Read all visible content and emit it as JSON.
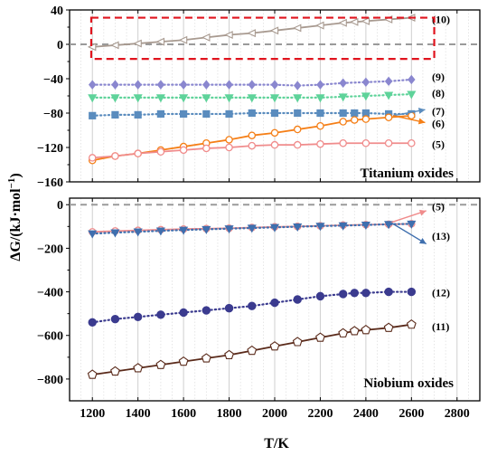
{
  "figure": {
    "xlabel": "T/K",
    "ylabel": "ΔG/(kJ·mol",
    "ylabel_sup": "−1",
    "ylabel_close": ")"
  },
  "chart_data": [
    {
      "type": "line",
      "annotation": "Titanium oxides",
      "xlim": [
        1100,
        2900
      ],
      "ylim": [
        -160,
        40
      ],
      "xticks": [
        "1200",
        "1400",
        "1600",
        "1800",
        "2000",
        "2200",
        "2400",
        "2600",
        "2800"
      ],
      "yticks": [
        "40",
        "0",
        "−40",
        "−80",
        "−120",
        "−160"
      ],
      "reference_line": 0,
      "highlight_box": {
        "x": [
          1195,
          2700
        ],
        "y": [
          -17,
          31
        ],
        "color": "#e0141e"
      },
      "series": [
        {
          "name": "(10)",
          "color": "#a89a90",
          "marker": "lefttri",
          "style": "solid",
          "x": [
            1200,
            1300,
            1400,
            1500,
            1600,
            1700,
            1800,
            1900,
            2000,
            2100,
            2200,
            2300,
            2350,
            2400,
            2500,
            2600
          ],
          "y": [
            -3,
            -1,
            1,
            3,
            5,
            8,
            11,
            13,
            16,
            19,
            22,
            25,
            26,
            27,
            29,
            31
          ]
        },
        {
          "name": "(9)",
          "color": "#8a87cf",
          "marker": "diamond",
          "style": "dotted",
          "x": [
            1200,
            1300,
            1400,
            1500,
            1600,
            1700,
            1800,
            1900,
            2000,
            2100,
            2200,
            2300,
            2400,
            2500,
            2600
          ],
          "y": [
            -47,
            -47,
            -47,
            -47,
            -47,
            -47,
            -47,
            -47,
            -47,
            -48,
            -47,
            -45,
            -44,
            -43,
            -41
          ]
        },
        {
          "name": "(8)",
          "color": "#5fd39a",
          "marker": "downtri",
          "style": "dotted",
          "x": [
            1200,
            1300,
            1400,
            1500,
            1600,
            1700,
            1800,
            1900,
            2000,
            2100,
            2200,
            2300,
            2400,
            2500,
            2600
          ],
          "y": [
            -62,
            -62,
            -62,
            -62,
            -62,
            -62,
            -62,
            -62,
            -62,
            -62,
            -62,
            -61,
            -60,
            -59,
            -58
          ]
        },
        {
          "name": "(7)",
          "color": "#5a8cbe",
          "marker": "square",
          "style": "dotted",
          "x": [
            1200,
            1300,
            1400,
            1500,
            1600,
            1700,
            1800,
            1900,
            2000,
            2100,
            2200,
            2300,
            2350,
            2400,
            2500,
            2600
          ],
          "y": [
            -83,
            -82,
            -82,
            -81,
            -81,
            -81,
            -81,
            -80,
            -80,
            -80,
            -80,
            -80,
            -80,
            -80,
            -81,
            -81
          ]
        },
        {
          "name": "(6)",
          "color": "#f57f17",
          "marker": "circle-open",
          "style": "solid",
          "x": [
            1200,
            1300,
            1400,
            1500,
            1600,
            1700,
            1800,
            1900,
            2000,
            2100,
            2200,
            2300,
            2350,
            2400,
            2500,
            2600
          ],
          "y": [
            -135,
            -130,
            -127,
            -123,
            -119,
            -115,
            -111,
            -106,
            -103,
            -99,
            -95,
            -90,
            -88,
            -87,
            -85,
            -83
          ]
        },
        {
          "name": "(5)",
          "color": "#f08c8c",
          "marker": "circle-open",
          "style": "solid",
          "x": [
            1200,
            1300,
            1400,
            1500,
            1600,
            1700,
            1800,
            1900,
            2000,
            2100,
            2200,
            2300,
            2400,
            2500,
            2600
          ],
          "y": [
            -132,
            -130,
            -127,
            -125,
            -123,
            -121,
            -120,
            -118,
            -117,
            -117,
            -116,
            -115,
            -115,
            -115,
            -115
          ]
        }
      ],
      "labels": [
        {
          "text": "(10)",
          "y": 30
        },
        {
          "text": "(9)",
          "y": -37
        },
        {
          "text": "(8)",
          "y": -56
        },
        {
          "text": "(7)",
          "y": -77
        },
        {
          "text": "(6)",
          "y": -91
        },
        {
          "text": "(5)",
          "y": -115
        }
      ]
    },
    {
      "type": "line",
      "annotation": "Niobium oxides",
      "xlim": [
        1100,
        2900
      ],
      "ylim": [
        -900,
        30
      ],
      "xticks": [
        "1200",
        "1400",
        "1600",
        "1800",
        "2000",
        "2200",
        "2400",
        "2600",
        "2800"
      ],
      "yticks": [
        "0",
        "−200",
        "−400",
        "−600",
        "−800"
      ],
      "reference_line": 0,
      "series": [
        {
          "name": "(5)",
          "color": "#f08c8c",
          "marker": "circle-open",
          "style": "solid",
          "x": [
            1200,
            1300,
            1400,
            1500,
            1600,
            1700,
            1800,
            1900,
            2000,
            2100,
            2200,
            2300,
            2400,
            2500,
            2600
          ],
          "y": [
            -125,
            -121,
            -118,
            -115,
            -112,
            -110,
            -108,
            -105,
            -102,
            -100,
            -97,
            -94,
            -92,
            -90,
            -88
          ]
        },
        {
          "name": "(13)",
          "color": "#3f6fae",
          "marker": "downtri",
          "style": "dotted",
          "x": [
            1200,
            1300,
            1400,
            1500,
            1600,
            1700,
            1800,
            1900,
            2000,
            2100,
            2200,
            2300,
            2400,
            2500,
            2600
          ],
          "y": [
            -133,
            -128,
            -124,
            -120,
            -116,
            -113,
            -110,
            -107,
            -104,
            -101,
            -98,
            -96,
            -93,
            -90,
            -88
          ]
        },
        {
          "name": "(12)",
          "color": "#3b3b8f",
          "marker": "circle-filled",
          "style": "dotted",
          "x": [
            1200,
            1300,
            1400,
            1500,
            1600,
            1700,
            1800,
            1900,
            2000,
            2100,
            2200,
            2300,
            2350,
            2400,
            2500,
            2600
          ],
          "y": [
            -540,
            -525,
            -515,
            -505,
            -495,
            -485,
            -475,
            -465,
            -450,
            -435,
            -420,
            -410,
            -405,
            -405,
            -400,
            -400
          ]
        },
        {
          "name": "(11)",
          "color": "#5a2a1a",
          "marker": "pentagon",
          "style": "solid",
          "x": [
            1200,
            1300,
            1400,
            1500,
            1600,
            1700,
            1800,
            1900,
            2000,
            2100,
            2200,
            2300,
            2350,
            2400,
            2500,
            2600
          ],
          "y": [
            -780,
            -765,
            -750,
            -735,
            -720,
            -705,
            -690,
            -670,
            -650,
            -630,
            -610,
            -590,
            -580,
            -575,
            -565,
            -550
          ]
        }
      ],
      "labels": [
        {
          "text": "(5)",
          "y": -5
        },
        {
          "text": "(13)",
          "y": -140
        },
        {
          "text": "(12)",
          "y": -400
        },
        {
          "text": "(11)",
          "y": -555
        }
      ]
    }
  ]
}
